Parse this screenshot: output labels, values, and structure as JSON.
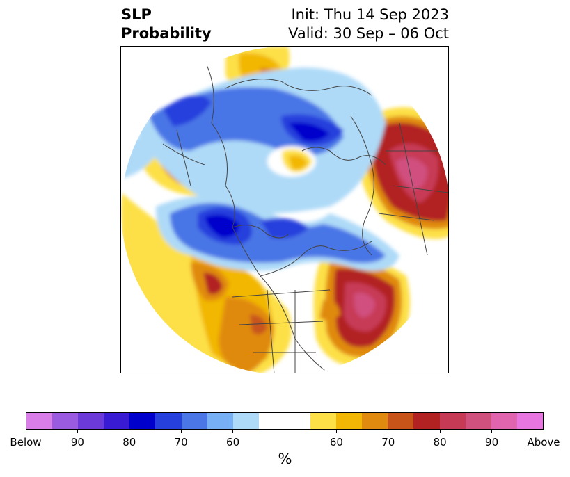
{
  "title": {
    "left_line1": "SLP",
    "left_line2": "Probability",
    "right_line1": "Init: Thu 14 Sep 2023",
    "right_line2": "Valid: 30 Sep – 06 Oct"
  },
  "colorbar": {
    "segments": [
      "#d97ee8",
      "#9b5be0",
      "#6b3ad8",
      "#3a1bd4",
      "#0000cc",
      "#2540dd",
      "#4a76e6",
      "#77b0f4",
      "#aedaf8",
      "#ffffff",
      "#ffffff",
      "#fde047",
      "#f2b705",
      "#e08a10",
      "#c8541a",
      "#b22222",
      "#c73a56",
      "#d0507e",
      "#e065ae",
      "#e876e0"
    ],
    "tick_labels": [
      "Below",
      "90",
      "80",
      "70",
      "60",
      "60",
      "70",
      "80",
      "90",
      "Above"
    ],
    "unit_label": "%"
  },
  "palette": {
    "below_light": "#aedaf8",
    "below_mid": "#4a76e6",
    "below_deep": "#0000cc",
    "above_light": "#fde047",
    "above_mid": "#e08a10",
    "above_deep": "#b22222",
    "above_extreme": "#d0507e"
  },
  "map": {
    "projection": "north-polar-stereographic",
    "field": "sea level pressure probability"
  }
}
